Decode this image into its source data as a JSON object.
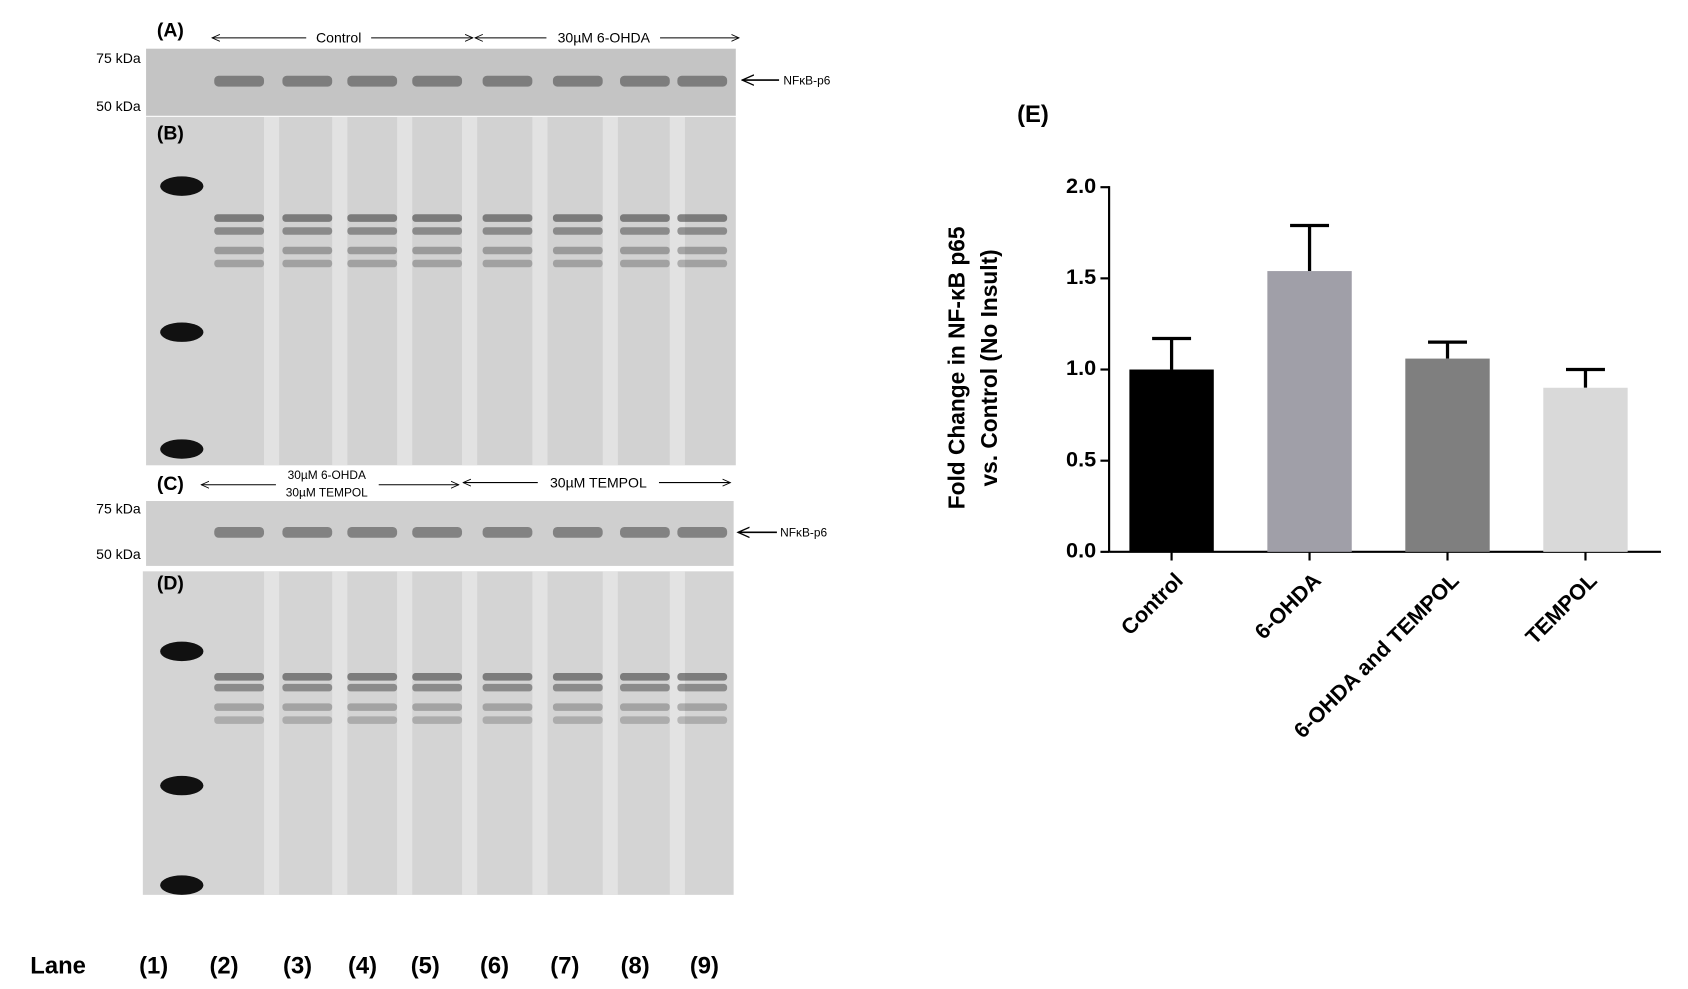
{
  "chart_data": {
    "type": "bar",
    "title": "(E)",
    "ylabel": [
      "Fold Change in NF-κB p65",
      "vs. Control (No Insult)"
    ],
    "categories": [
      "Control",
      "6-OHDA",
      "6-OHDA and TEMPOL",
      "TEMPOL"
    ],
    "values": [
      1.0,
      1.54,
      1.06,
      0.9
    ],
    "errors": [
      0.17,
      0.25,
      0.09,
      0.1
    ],
    "colors": [
      "#000000",
      "#a09fa8",
      "#7f7f7f",
      "#d9d9d9"
    ],
    "ylim": [
      0,
      2.0
    ],
    "yticks": [
      {
        "value": 0,
        "label": "0.0"
      },
      {
        "value": 0.5,
        "label": "0.5"
      },
      {
        "value": 1.0,
        "label": "1.0"
      },
      {
        "value": 1.5,
        "label": "1.5"
      },
      {
        "value": 2.0,
        "label": "2.0"
      }
    ]
  },
  "blots": {
    "panel_a": {
      "label": "(A)",
      "groups": [
        "Control",
        "30µM 6-OHDA"
      ],
      "marker_high": "75 kDa",
      "marker_low": "50 kDa",
      "target": "NFκB-p6"
    },
    "panel_b": {
      "label": "(B)"
    },
    "panel_c": {
      "label": "(C)",
      "groups": [
        [
          "30µM 6-OHDA",
          "30µM TEMPOL"
        ],
        "30µM TEMPOL"
      ],
      "marker_high": "75 kDa",
      "marker_low": "50 kDa",
      "target": "NFκB-p6"
    },
    "panel_d": {
      "label": "(D)"
    },
    "lanes": {
      "title": "Lane",
      "labels": [
        "(1)",
        "(2)",
        "(3)",
        "(4)",
        "(5)",
        "(6)",
        "(7)",
        "(8)",
        "(9)"
      ]
    }
  }
}
